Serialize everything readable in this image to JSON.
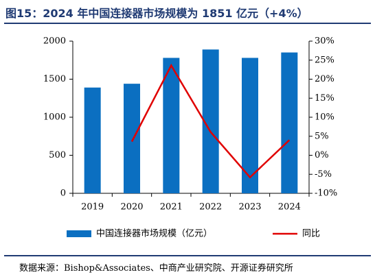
{
  "title": "图15：2024 年中国连接器市场规模为 1851 亿元（+4%）",
  "source": "数据来源：Bishop&Associates、中商产业研究院、开源证券研究所",
  "chart_data": {
    "type": "bar",
    "categories": [
      "2019",
      "2020",
      "2021",
      "2022",
      "2023",
      "2024"
    ],
    "series": [
      {
        "name": "中国连接器市场规模（亿元）",
        "type": "bar",
        "axis": "left",
        "values": [
          1390,
          1440,
          1780,
          1890,
          1780,
          1851
        ]
      },
      {
        "name": "同比",
        "type": "line",
        "axis": "right",
        "values": [
          null,
          3.6,
          23.6,
          6.1,
          -5.8,
          4.0
        ]
      }
    ],
    "y_left": {
      "ylim": [
        0,
        2000
      ],
      "ticks": [
        "0",
        "500",
        "1000",
        "1500",
        "2000"
      ]
    },
    "y_right": {
      "ylim": [
        -10,
        30
      ],
      "ticks": [
        "-10%",
        "-5%",
        "0%",
        "5%",
        "10%",
        "15%",
        "20%",
        "25%",
        "30%"
      ]
    },
    "grid": false,
    "legend_position": "bottom",
    "colors": {
      "bar": "#0b6fc1",
      "line": "#e00000"
    }
  }
}
